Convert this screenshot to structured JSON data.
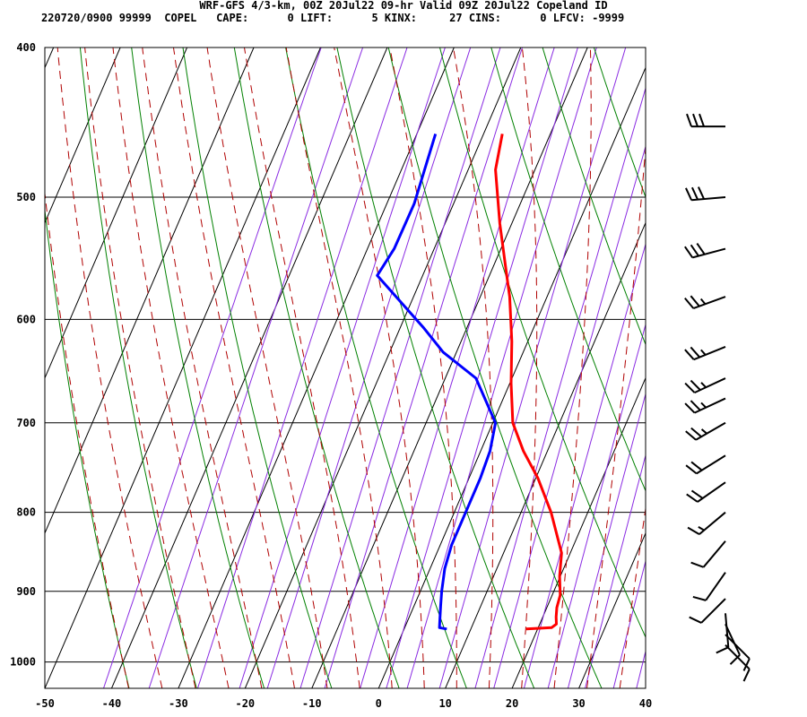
{
  "header": {
    "title_line": "WRF-GFS 4/3-km, 00Z 20Jul22 09-hr Valid 09Z 20Jul22 Copeland ID",
    "index_line": "220720/0900 99999  COPEL   CAPE:      0 LIFT:      5 KINX:     27 CINS:      0 LFCV: -9999"
  },
  "colors": {
    "temperature": "#ff0000",
    "dewpoint": "#0000ff",
    "isotherm": "#000000",
    "dry_adiabat": "#008000",
    "moist_adiabat": "#b00000",
    "mixing_ratio": "#8a2be2",
    "wind_barb": "#000000"
  },
  "chart_data": {
    "type": "skew-t",
    "xlim": [
      -50,
      40
    ],
    "ylim": [
      1040,
      400
    ],
    "y_scale": "log",
    "x_ticks": [
      -50,
      -40,
      -30,
      -20,
      -10,
      0,
      10,
      20,
      30,
      40
    ],
    "y_ticks": [
      400,
      500,
      600,
      700,
      800,
      900,
      1000
    ],
    "x_tick_labels": [
      "-50",
      "-40",
      "-30",
      "-20",
      "-10",
      "0",
      "10",
      "20",
      "30",
      "40"
    ],
    "y_tick_labels": [
      "400",
      "500",
      "600",
      "700",
      "800",
      "900",
      "1000"
    ],
    "series": [
      {
        "name": "",
        "kind": "temperature",
        "points": [
          [
            952,
            18.3
          ],
          [
            950,
            22.0
          ],
          [
            945,
            22.5
          ],
          [
            935,
            22.0
          ],
          [
            922,
            21.5
          ],
          [
            905,
            21.2
          ],
          [
            880,
            19.9
          ],
          [
            850,
            18.7
          ],
          [
            800,
            14.5
          ],
          [
            760,
            10.3
          ],
          [
            730,
            6.4
          ],
          [
            700,
            3.0
          ],
          [
            660,
            0.2
          ],
          [
            620,
            -2.4
          ],
          [
            580,
            -5.6
          ],
          [
            560,
            -7.6
          ],
          [
            520,
            -11.8
          ],
          [
            480,
            -15.9
          ],
          [
            455,
            -17.2
          ]
        ]
      },
      {
        "name": "",
        "kind": "dewpoint",
        "points": [
          [
            952,
            6.4
          ],
          [
            950,
            5.2
          ],
          [
            940,
            4.8
          ],
          [
            920,
            4.0
          ],
          [
            900,
            3.2
          ],
          [
            870,
            2.2
          ],
          [
            840,
            1.7
          ],
          [
            800,
            1.7
          ],
          [
            760,
            1.7
          ],
          [
            730,
            1.4
          ],
          [
            700,
            0.4
          ],
          [
            655,
            -5.4
          ],
          [
            630,
            -12.0
          ],
          [
            608,
            -16.4
          ],
          [
            562,
            -26.8
          ],
          [
            540,
            -26.0
          ],
          [
            505,
            -25.9
          ],
          [
            455,
            -27.2
          ]
        ]
      }
    ],
    "wind_barbs": [
      {
        "p": 975,
        "dir": 135,
        "spd": 10
      },
      {
        "p": 960,
        "dir": 135,
        "spd": 10
      },
      {
        "p": 945,
        "dir": 155,
        "spd": 10
      },
      {
        "p": 930,
        "dir": 175,
        "spd": 10
      },
      {
        "p": 910,
        "dir": 225,
        "spd": 10
      },
      {
        "p": 875,
        "dir": 215,
        "spd": 10
      },
      {
        "p": 835,
        "dir": 220,
        "spd": 10
      },
      {
        "p": 800,
        "dir": 230,
        "spd": 15
      },
      {
        "p": 765,
        "dir": 235,
        "spd": 20
      },
      {
        "p": 735,
        "dir": 238,
        "spd": 20
      },
      {
        "p": 700,
        "dir": 240,
        "spd": 25
      },
      {
        "p": 675,
        "dir": 245,
        "spd": 25
      },
      {
        "p": 655,
        "dir": 245,
        "spd": 25
      },
      {
        "p": 625,
        "dir": 248,
        "spd": 25
      },
      {
        "p": 580,
        "dir": 250,
        "spd": 25
      },
      {
        "p": 540,
        "dir": 255,
        "spd": 30
      },
      {
        "p": 500,
        "dir": 265,
        "spd": 30
      },
      {
        "p": 450,
        "dir": 270,
        "spd": 30
      }
    ]
  }
}
